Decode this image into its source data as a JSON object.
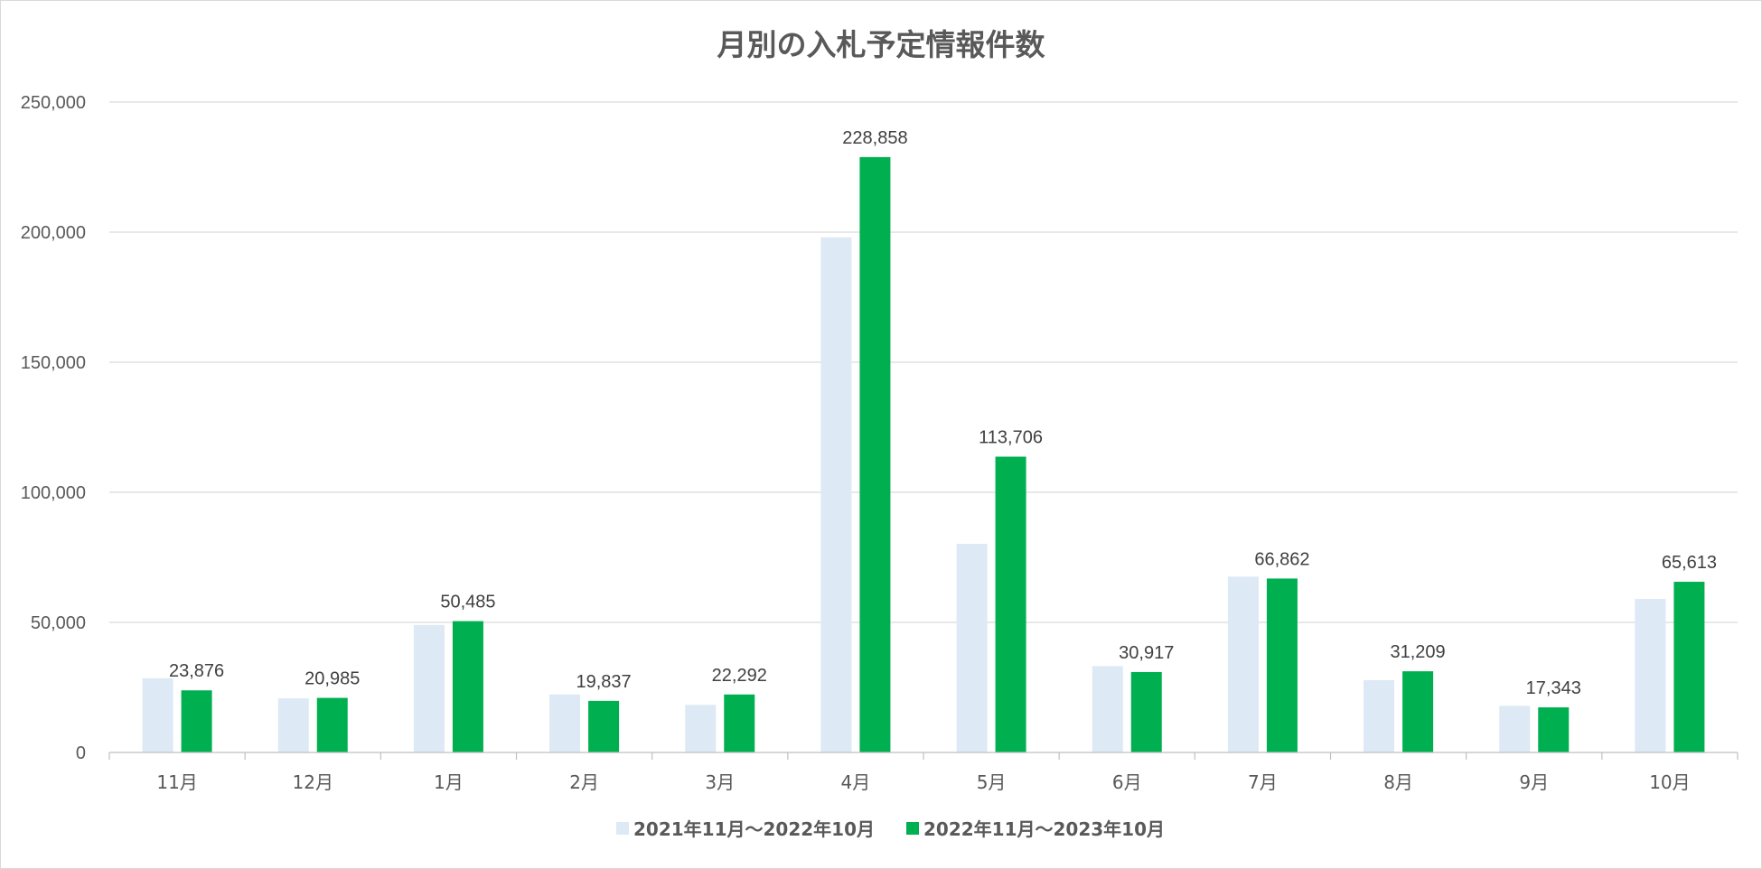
{
  "chart_data": {
    "type": "bar",
    "title": "月別の入札予定情報件数",
    "categories": [
      "11月",
      "12月",
      "1月",
      "2月",
      "3月",
      "4月",
      "5月",
      "6月",
      "7月",
      "8月",
      "9月",
      "10月"
    ],
    "ylim": [
      0,
      250000
    ],
    "yticks": [
      0,
      50000,
      100000,
      150000,
      200000,
      250000
    ],
    "ytick_labels": [
      "0",
      "50,000",
      "100,000",
      "150,000",
      "200,000",
      "250,000"
    ],
    "grid": true,
    "legend_position": "bottom",
    "series": [
      {
        "name": "2021年11月～2022年10月",
        "color": "#dde9f5",
        "values": [
          28500,
          20800,
          49000,
          22300,
          18300,
          198000,
          80200,
          33200,
          67600,
          27800,
          17900,
          59000
        ]
      },
      {
        "name": "2022年11月～2023年10月",
        "color": "#00b050",
        "values": [
          23876,
          20985,
          50485,
          19837,
          22292,
          228858,
          113706,
          30917,
          66862,
          31209,
          17343,
          65613
        ],
        "data_labels": [
          "23,876",
          "20,985",
          "50,485",
          "19,837",
          "22,292",
          "228,858",
          "113,706",
          "30,917",
          "66,862",
          "31,209",
          "17,343",
          "65,613"
        ]
      }
    ]
  }
}
